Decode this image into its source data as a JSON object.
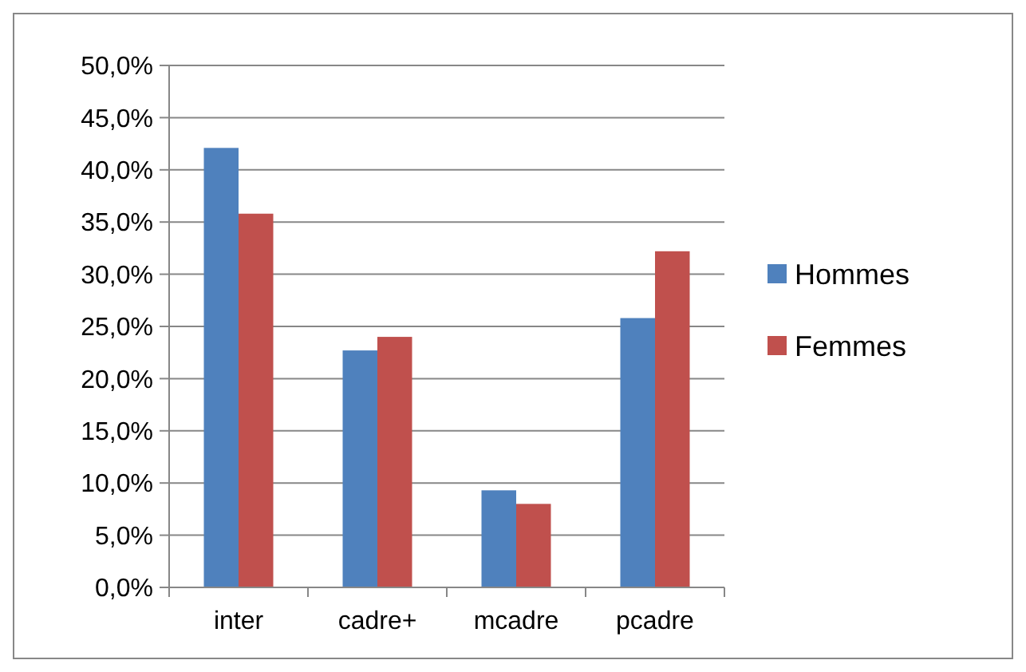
{
  "chart_data": {
    "type": "bar",
    "categories": [
      "inter",
      "cadre+",
      "mcadre",
      "pcadre"
    ],
    "series": [
      {
        "name": "Hommes",
        "color": "#4f81bd",
        "values": [
          42.1,
          22.7,
          9.3,
          25.8
        ]
      },
      {
        "name": "Femmes",
        "color": "#c0504d",
        "values": [
          35.8,
          24.0,
          8.0,
          32.2
        ]
      }
    ],
    "ylim": [
      0,
      50
    ],
    "yticks": [
      {
        "value": 0,
        "label": "0,0%"
      },
      {
        "value": 5,
        "label": "5,0%"
      },
      {
        "value": 10,
        "label": "10,0%"
      },
      {
        "value": 15,
        "label": "15,0%"
      },
      {
        "value": 20,
        "label": "20,0%"
      },
      {
        "value": 25,
        "label": "25,0%"
      },
      {
        "value": 30,
        "label": "30,0%"
      },
      {
        "value": 35,
        "label": "35,0%"
      },
      {
        "value": 40,
        "label": "40,0%"
      },
      {
        "value": 45,
        "label": "45,0%"
      },
      {
        "value": 50,
        "label": "50,0%"
      }
    ],
    "grid": "y",
    "legend": "right"
  }
}
